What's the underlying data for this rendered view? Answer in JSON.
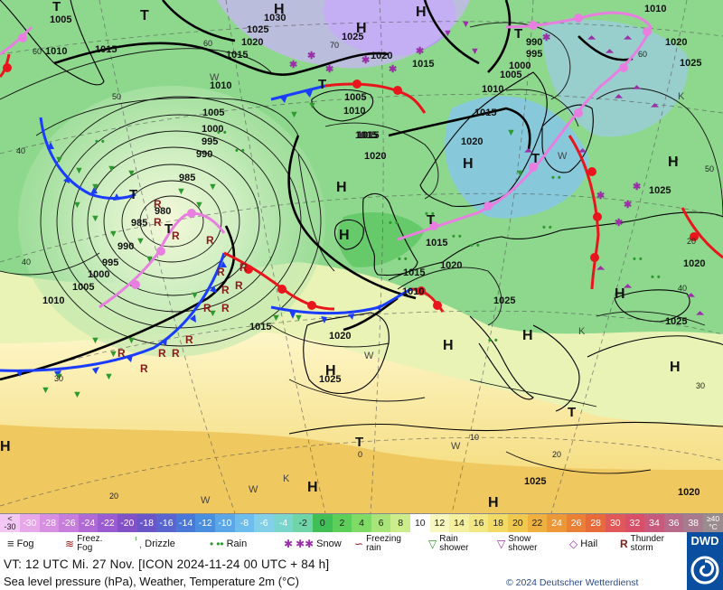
{
  "map": {
    "isobar_labels": [
      {
        "t": "1005"
      },
      {
        "t": "1015"
      },
      {
        "t": "1010"
      },
      {
        "t": "1030"
      },
      {
        "t": "1025"
      },
      {
        "t": "1020"
      },
      {
        "t": "1015"
      },
      {
        "t": "1025"
      },
      {
        "t": "1020"
      },
      {
        "t": "1015"
      },
      {
        "t": "990"
      },
      {
        "t": "995"
      },
      {
        "t": "1000"
      },
      {
        "t": "1005"
      },
      {
        "t": "1010"
      },
      {
        "t": "1015"
      },
      {
        "t": "1010"
      },
      {
        "t": "1020"
      },
      {
        "t": "1025"
      },
      {
        "t": "1010"
      },
      {
        "t": "1015"
      },
      {
        "t": "1005"
      },
      {
        "t": "1010"
      },
      {
        "t": "1005"
      },
      {
        "t": "1000"
      },
      {
        "t": "995"
      },
      {
        "t": "990"
      },
      {
        "t": "985"
      },
      {
        "t": "980"
      },
      {
        "t": "985"
      },
      {
        "t": "990"
      },
      {
        "t": "995"
      },
      {
        "t": "1000"
      },
      {
        "t": "1005"
      },
      {
        "t": "1010"
      },
      {
        "t": "1015"
      },
      {
        "t": "1020"
      },
      {
        "t": "1015"
      },
      {
        "t": "1010"
      },
      {
        "t": "1015"
      },
      {
        "t": "1020"
      },
      {
        "t": "1015"
      },
      {
        "t": "1020"
      },
      {
        "t": "1015"
      },
      {
        "t": "1020"
      },
      {
        "t": "1025"
      },
      {
        "t": "1025"
      },
      {
        "t": "1020"
      },
      {
        "t": "1025"
      },
      {
        "t": "1025"
      },
      {
        "t": "1025"
      },
      {
        "t": "1020"
      },
      {
        "t": "1025"
      }
    ],
    "high_low_labels": [
      {
        "t": "T"
      },
      {
        "t": "H"
      },
      {
        "t": "H"
      },
      {
        "t": "T"
      },
      {
        "t": "T"
      },
      {
        "t": "T"
      },
      {
        "t": "H"
      },
      {
        "t": "T"
      },
      {
        "t": "T"
      },
      {
        "t": "H"
      },
      {
        "t": "H"
      },
      {
        "t": "T"
      },
      {
        "t": "H"
      },
      {
        "t": "H"
      },
      {
        "t": "H"
      },
      {
        "t": "H"
      },
      {
        "t": "H"
      },
      {
        "t": "H"
      },
      {
        "t": "H"
      },
      {
        "t": "H"
      },
      {
        "t": "T"
      },
      {
        "t": "H"
      },
      {
        "t": "H"
      },
      {
        "t": "T"
      },
      {
        "t": "T"
      }
    ],
    "grid_labels": [
      {
        "t": "60"
      },
      {
        "t": "60"
      },
      {
        "t": "50"
      },
      {
        "t": "40"
      },
      {
        "t": "40"
      },
      {
        "t": "70"
      },
      {
        "t": "60"
      },
      {
        "t": "50"
      },
      {
        "t": "40"
      },
      {
        "t": "30"
      },
      {
        "t": "30"
      },
      {
        "t": "20"
      },
      {
        "t": "20"
      },
      {
        "t": "10"
      },
      {
        "t": "0"
      },
      {
        "t": "20"
      }
    ],
    "wind_labels": [
      {
        "t": "W"
      },
      {
        "t": "W"
      },
      {
        "t": "W"
      },
      {
        "t": "W"
      },
      {
        "t": "W"
      },
      {
        "t": "W"
      },
      {
        "t": "K"
      },
      {
        "t": "K"
      },
      {
        "t": "K"
      }
    ]
  },
  "scale": {
    "unit_top": "<",
    "unit_low": "-30",
    "cells": [
      {
        "v": "-30",
        "c": "#e6a8e8"
      },
      {
        "v": "-28",
        "c": "#d68fe2"
      },
      {
        "v": "-26",
        "c": "#c77ddc"
      },
      {
        "v": "-24",
        "c": "#b06ad6"
      },
      {
        "v": "-22",
        "c": "#9a5cd0"
      },
      {
        "v": "-20",
        "c": "#8251c8"
      },
      {
        "v": "-18",
        "c": "#6a55c8"
      },
      {
        "v": "-16",
        "c": "#5864d0"
      },
      {
        "v": "-14",
        "c": "#4a78d8"
      },
      {
        "v": "-12",
        "c": "#4a8ee0"
      },
      {
        "v": "-10",
        "c": "#5aa6e6"
      },
      {
        "v": "-8",
        "c": "#6cbced"
      },
      {
        "v": "-6",
        "c": "#82cfe8"
      },
      {
        "v": "-4",
        "c": "#7ad6cc"
      },
      {
        "v": "-2",
        "c": "#6fd4a8"
      },
      {
        "v": "0",
        "c": "#3fbf56"
      },
      {
        "v": "2",
        "c": "#5ccf5a"
      },
      {
        "v": "4",
        "c": "#7fda66"
      },
      {
        "v": "6",
        "c": "#a8e47a"
      },
      {
        "v": "8",
        "c": "#cbed8c"
      },
      {
        "v": "10",
        "c": "#ffffff"
      },
      {
        "v": "12",
        "c": "#f6f8c0"
      },
      {
        "v": "14",
        "c": "#f4f0a0"
      },
      {
        "v": "16",
        "c": "#f2e782"
      },
      {
        "v": "18",
        "c": "#f1da66"
      },
      {
        "v": "20",
        "c": "#efc94e"
      },
      {
        "v": "22",
        "c": "#eeb03e"
      },
      {
        "v": "24",
        "c": "#ec9838"
      },
      {
        "v": "26",
        "c": "#e98036"
      },
      {
        "v": "28",
        "c": "#e66a3a"
      },
      {
        "v": "30",
        "c": "#e05858"
      },
      {
        "v": "32",
        "c": "#d85068"
      },
      {
        "v": "34",
        "c": "#c85a7e"
      },
      {
        "v": "36",
        "c": "#b86a8a"
      },
      {
        "v": "38",
        "c": "#a87a8e"
      }
    ],
    "unit_high_top": "≥40",
    "unit_high_bottom": "°C"
  },
  "legend": {
    "fog": "Fog",
    "freezing_fog": "Freez.\nFog",
    "drizzle": "Drizzle",
    "rain": "Rain",
    "snow": "Snow",
    "freezing_rain": "Freezing\nrain",
    "rain_shower": "Rain\nshower",
    "snow_shower": "Snow\nshower",
    "hail": "Hail",
    "thunderstorm": "Thunder\nstorm"
  },
  "footer": {
    "valid_time": "VT: 12 UTC Mi.  27 Nov. [ICON 2024-11-24  00 UTC + 84 h]",
    "description": "Sea level pressure (hPa), Weather, Temperature 2m (°C)",
    "copyright": "© 2024 Deutscher Wetterdienst",
    "logo_text": "DWD"
  },
  "colors": {
    "cold_front": "#1a3cff",
    "warm_front": "#e8151c",
    "occlusion": "#e87fe0",
    "rain_symbol": "#2e9a2e",
    "snow_symbol": "#9b2fa8",
    "thunder_symbol": "#8a1a1a"
  }
}
